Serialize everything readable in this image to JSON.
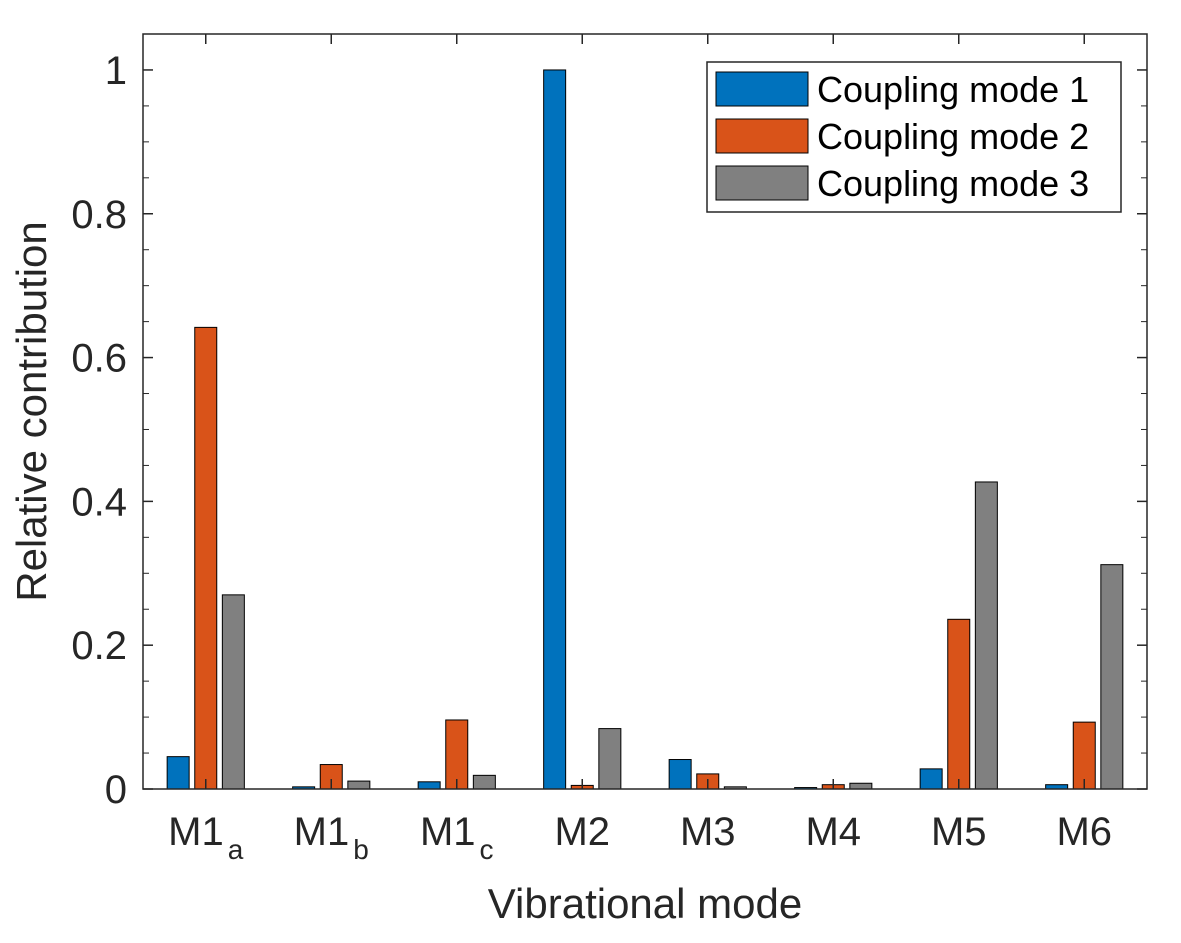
{
  "chart_data": {
    "type": "bar",
    "title": "",
    "xlabel": "Vibrational mode",
    "ylabel": "Relative contribution",
    "ylim": [
      0,
      1.05
    ],
    "yticks": [
      0,
      0.2,
      0.4,
      0.6,
      0.8,
      1
    ],
    "ytick_labels": [
      "0",
      "0.2",
      "0.4",
      "0.6",
      "0.8",
      "1"
    ],
    "categories": [
      {
        "base": "M1",
        "sub": "a"
      },
      {
        "base": "M1",
        "sub": "b"
      },
      {
        "base": "M1",
        "sub": "c"
      },
      {
        "base": "M2",
        "sub": ""
      },
      {
        "base": "M3",
        "sub": ""
      },
      {
        "base": "M4",
        "sub": ""
      },
      {
        "base": "M5",
        "sub": ""
      },
      {
        "base": "M6",
        "sub": ""
      }
    ],
    "series": [
      {
        "name": "Coupling mode 1",
        "color": "#0072BD",
        "values": [
          0.045,
          0.003,
          0.01,
          1.0,
          0.041,
          0.002,
          0.028,
          0.006
        ]
      },
      {
        "name": "Coupling mode 2",
        "color": "#D95319",
        "values": [
          0.642,
          0.034,
          0.096,
          0.005,
          0.021,
          0.006,
          0.236,
          0.093
        ]
      },
      {
        "name": "Coupling mode 3",
        "color": "#808080",
        "values": [
          0.27,
          0.011,
          0.019,
          0.084,
          0.003,
          0.008,
          0.427,
          0.312
        ]
      }
    ],
    "grid": false,
    "legend_position": "top-right"
  }
}
